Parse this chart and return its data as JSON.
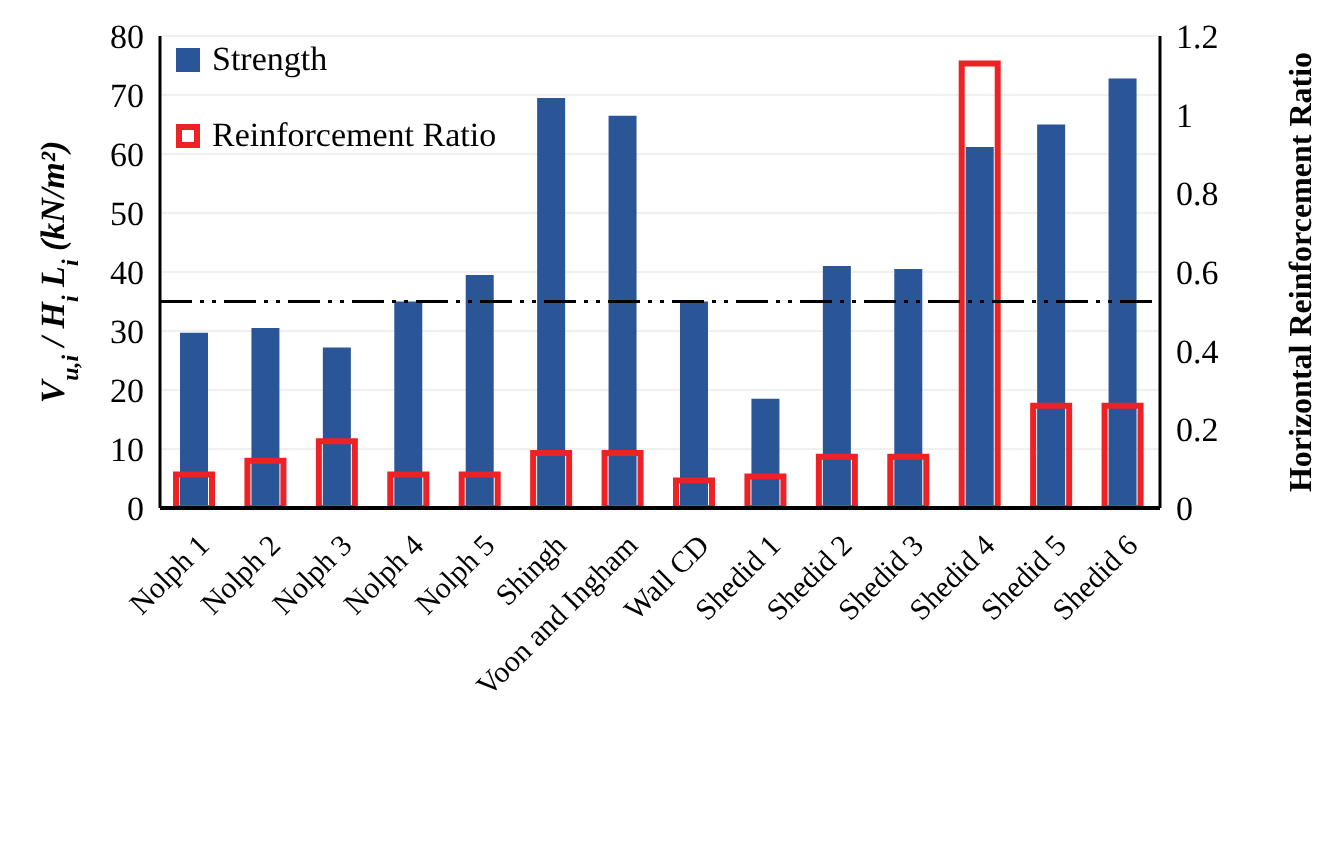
{
  "chart_data": {
    "type": "bar",
    "ylabel": "V$_{u,i}$ / H$_{i}$ L$_{i}$ (kN/m²)",
    "y2label": "Horizontal Reinforcement Ratio",
    "categories": [
      "Nolph 1",
      "Nolph 2",
      "Nolph 3",
      "Nolph 4",
      "Nolph 5",
      "Shingh",
      "Voon and Ingham",
      "Wall CD",
      "Shedid 1",
      "Shedid 2",
      "Shedid 3",
      "Shedid 4",
      "Shedid 5",
      "Shedid 6"
    ],
    "series": [
      {
        "name": "Strength",
        "color": "#2a5597",
        "values": [
          29.7,
          30.5,
          27.2,
          35,
          39.5,
          69.5,
          66.5,
          35,
          18.5,
          41,
          40.5,
          61.2,
          65,
          72.8
        ]
      },
      {
        "name": "Reinforcement Ratio",
        "color": "#ee2224",
        "axis": "y2",
        "values": [
          0.085,
          0.12,
          0.17,
          0.085,
          0.085,
          0.14,
          0.14,
          0.07,
          0.08,
          0.13,
          0.13,
          1.13,
          0.26,
          0.26
        ]
      }
    ],
    "ylim": [
      0,
      80
    ],
    "yticks": [
      0,
      10,
      20,
      30,
      40,
      50,
      60,
      70,
      80
    ],
    "y2lim": [
      0,
      1.2
    ],
    "y2ticks": [
      0,
      0.2,
      0.4,
      0.6,
      0.8,
      1,
      1.2
    ],
    "ref_lines": [
      {
        "axis": "y",
        "value": 35,
        "line_style": "dashdotdot",
        "color": "#000000"
      }
    ],
    "grid": "y",
    "legend": "top left"
  }
}
